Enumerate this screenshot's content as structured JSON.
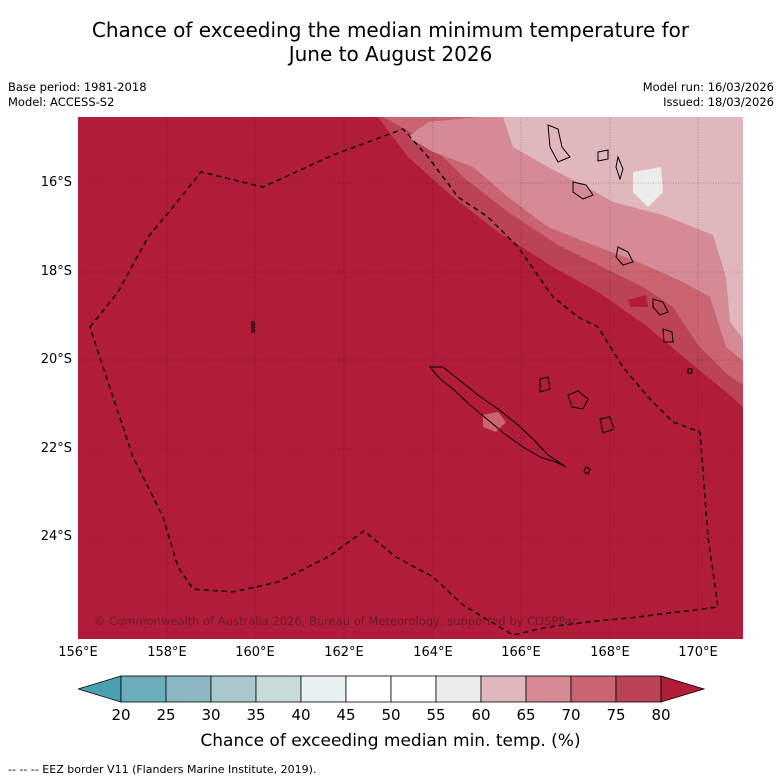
{
  "title_line1": "Chance of exceeding the median minimum temperature for",
  "title_line2": "June to August 2026",
  "base_period": "Base period: 1981-2018",
  "model": "Model: ACCESS-S2",
  "model_run": "Model run: 16/03/2026",
  "issued": "Issued: 18/03/2026",
  "copyright": "© Commonwealth of Australia 2026, Bureau of Meteorology, supported by COSPPac",
  "lat_labels": [
    "16°S",
    "18°S",
    "20°S",
    "22°S",
    "24°S"
  ],
  "lon_labels": [
    "156°E",
    "158°E",
    "160°E",
    "162°E",
    "164°E",
    "166°E",
    "168°E",
    "170°E"
  ],
  "colorbar": {
    "ticks": [
      "20",
      "25",
      "30",
      "35",
      "40",
      "45",
      "50",
      "55",
      "60",
      "65",
      "70",
      "75",
      "80"
    ],
    "colors": [
      "#6aaebb",
      "#8ab7c2",
      "#a9c8cc",
      "#c9dadb",
      "#e9f0f1",
      "#ffffff",
      "#ffffff",
      "#ececec",
      "#e0b7bd",
      "#d58a96",
      "#c96470",
      "#bc4356",
      "#b11c39"
    ],
    "label": "Chance of exceeding median min. temp. (%)"
  },
  "legend_text": "--  --  -- EEZ border V11 (Flanders Marine Institute, 2019)."
}
